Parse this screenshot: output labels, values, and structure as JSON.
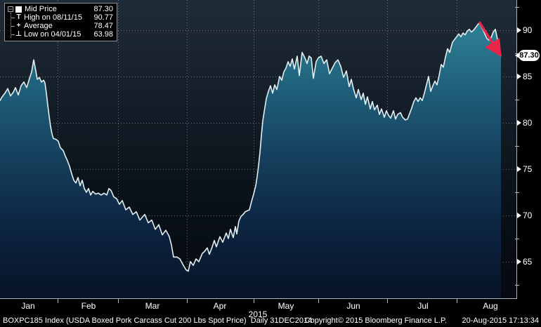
{
  "legend": {
    "collapse_glyph": "−",
    "items": [
      {
        "icon": "mid-price-swatch",
        "label": "Mid Price",
        "value": "87.30"
      },
      {
        "icon": "high-marker",
        "glyph": "T",
        "label": "High on 08/11/15",
        "value": "90.77"
      },
      {
        "icon": "average-marker",
        "glyph": "+",
        "label": "Average",
        "value": "78.47"
      },
      {
        "icon": "low-marker",
        "glyph": "⊥",
        "label": "Low on 04/01/15",
        "value": "63.98"
      }
    ]
  },
  "chart_data": {
    "type": "area",
    "title": "BOXPC185 Index (USDA Boxed Pork Carcass Cut 200 Lbs Spot Price)",
    "period": "Daily 31DEC2014",
    "last_price_label": "87.30",
    "high": {
      "date": "08/11/15",
      "value": 90.77
    },
    "average": 78.47,
    "low": {
      "date": "04/01/15",
      "value": 63.98
    },
    "x_axis": {
      "month_labels": [
        "Jan",
        "Feb",
        "Mar",
        "Apr",
        "May",
        "Jun",
        "Jul",
        "Aug"
      ],
      "month_label_x": [
        40,
        126,
        217,
        313,
        407,
        503,
        602,
        698
      ],
      "month_tick_x": [
        82,
        168,
        266,
        361,
        453,
        551,
        650
      ],
      "year": "2015"
    },
    "y_axis": {
      "ticks": [
        90,
        85,
        80,
        75,
        70,
        65
      ],
      "minor_ticks": [
        92.5,
        87.5,
        82.5,
        77.5,
        72.5,
        67.5,
        62.5
      ],
      "ylim": [
        60.98,
        93.26
      ]
    },
    "grid": true,
    "legend_position": "top-left",
    "series": [
      {
        "name": "Mid Price",
        "points": [
          [
            0,
            82.4
          ],
          [
            3,
            82.8
          ],
          [
            7,
            83.2
          ],
          [
            11,
            83.7
          ],
          [
            15,
            82.9
          ],
          [
            19,
            83.3
          ],
          [
            22,
            83.8
          ],
          [
            26,
            83.0
          ],
          [
            30,
            84.0
          ],
          [
            34,
            84.4
          ],
          [
            38,
            83.8
          ],
          [
            42,
            84.8
          ],
          [
            45,
            85.5
          ],
          [
            48,
            86.8
          ],
          [
            51,
            85.6
          ],
          [
            53,
            84.7
          ],
          [
            56,
            84.9
          ],
          [
            59,
            84.4
          ],
          [
            62,
            84.6
          ],
          [
            64,
            84.3
          ],
          [
            66,
            83.2
          ],
          [
            68,
            81.9
          ],
          [
            70,
            80.7
          ],
          [
            72,
            79.6
          ],
          [
            74,
            78.8
          ],
          [
            76,
            78.3
          ],
          [
            80,
            78.2
          ],
          [
            83,
            78.0
          ],
          [
            86,
            77.3
          ],
          [
            90,
            77.0
          ],
          [
            93,
            76.4
          ],
          [
            96,
            75.9
          ],
          [
            99,
            75.3
          ],
          [
            102,
            74.5
          ],
          [
            105,
            73.8
          ],
          [
            108,
            73.5
          ],
          [
            111,
            74.1
          ],
          [
            114,
            73.2
          ],
          [
            117,
            73.8
          ],
          [
            120,
            72.9
          ],
          [
            123,
            72.5
          ],
          [
            126,
            72.9
          ],
          [
            129,
            72.2
          ],
          [
            132,
            72.6
          ],
          [
            136,
            72.3
          ],
          [
            140,
            72.4
          ],
          [
            144,
            72.2
          ],
          [
            148,
            72.4
          ],
          [
            152,
            72.2
          ],
          [
            155,
            72.9
          ],
          [
            158,
            72.7
          ],
          [
            162,
            72.0
          ],
          [
            166,
            71.8
          ],
          [
            170,
            71.2
          ],
          [
            174,
            71.6
          ],
          [
            179,
            70.6
          ],
          [
            184,
            70.9
          ],
          [
            189,
            70.1
          ],
          [
            194,
            70.4
          ],
          [
            199,
            69.5
          ],
          [
            206,
            70.1
          ],
          [
            211,
            69.2
          ],
          [
            216,
            69.5
          ],
          [
            221,
            68.5
          ],
          [
            226,
            69.0
          ],
          [
            231,
            67.9
          ],
          [
            236,
            68.4
          ],
          [
            241,
            67.7
          ],
          [
            244,
            66.8
          ],
          [
            247,
            65.5
          ],
          [
            252,
            65.5
          ],
          [
            256,
            65.3
          ],
          [
            261,
            64.6
          ],
          [
            265,
            64.1
          ],
          [
            268,
            63.98
          ],
          [
            271,
            65.0
          ],
          [
            275,
            64.6
          ],
          [
            279,
            65.3
          ],
          [
            283,
            65.0
          ],
          [
            288,
            65.9
          ],
          [
            291,
            66.1
          ],
          [
            295,
            66.5
          ],
          [
            298,
            65.8
          ],
          [
            302,
            66.6
          ],
          [
            305,
            67.3
          ],
          [
            308,
            66.6
          ],
          [
            313,
            67.7
          ],
          [
            317,
            67.1
          ],
          [
            322,
            68.1
          ],
          [
            325,
            67.5
          ],
          [
            328,
            68.5
          ],
          [
            332,
            67.6
          ],
          [
            335,
            68.8
          ],
          [
            337,
            68.0
          ],
          [
            340,
            69.4
          ],
          [
            343,
            69.9
          ],
          [
            346,
            70.1
          ],
          [
            349,
            70.4
          ],
          [
            352,
            70.5
          ],
          [
            355,
            70.6
          ],
          [
            358,
            71.5
          ],
          [
            361,
            72.3
          ],
          [
            364,
            73.2
          ],
          [
            366,
            74.2
          ],
          [
            368,
            75.4
          ],
          [
            370,
            76.8
          ],
          [
            372,
            78.6
          ],
          [
            374,
            80.2
          ],
          [
            376,
            81.2
          ],
          [
            379,
            82.6
          ],
          [
            382,
            83.4
          ],
          [
            385,
            84.0
          ],
          [
            388,
            83.2
          ],
          [
            391,
            84.1
          ],
          [
            394,
            83.6
          ],
          [
            398,
            85.0
          ],
          [
            401,
            84.6
          ],
          [
            404,
            85.5
          ],
          [
            407,
            85.9
          ],
          [
            410,
            86.6
          ],
          [
            413,
            86.1
          ],
          [
            416,
            86.9
          ],
          [
            419,
            85.8
          ],
          [
            423,
            87.2
          ],
          [
            426,
            85.1
          ],
          [
            430,
            87.6
          ],
          [
            434,
            87.0
          ],
          [
            437,
            86.4
          ],
          [
            440,
            87.2
          ],
          [
            443,
            87.0
          ],
          [
            446,
            84.8
          ],
          [
            450,
            86.6
          ],
          [
            453,
            87.0
          ],
          [
            457,
            87.2
          ],
          [
            461,
            86.4
          ],
          [
            465,
            86.8
          ],
          [
            469,
            85.3
          ],
          [
            473,
            85.9
          ],
          [
            477,
            86.5
          ],
          [
            481,
            86.8
          ],
          [
            485,
            86.1
          ],
          [
            489,
            84.9
          ],
          [
            493,
            85.6
          ],
          [
            497,
            83.9
          ],
          [
            500,
            84.7
          ],
          [
            503,
            83.7
          ],
          [
            507,
            82.7
          ],
          [
            510,
            83.6
          ],
          [
            514,
            82.5
          ],
          [
            517,
            83.2
          ],
          [
            520,
            82.0
          ],
          [
            523,
            82.8
          ],
          [
            527,
            81.5
          ],
          [
            530,
            82.3
          ],
          [
            533,
            81.4
          ],
          [
            537,
            81.9
          ],
          [
            540,
            80.9
          ],
          [
            543,
            81.5
          ],
          [
            547,
            80.6
          ],
          [
            550,
            81.3
          ],
          [
            553,
            80.8
          ],
          [
            556,
            80.5
          ],
          [
            560,
            81.3
          ],
          [
            563,
            80.4
          ],
          [
            566,
            80.9
          ],
          [
            570,
            81.1
          ],
          [
            573,
            80.6
          ],
          [
            577,
            80.3
          ],
          [
            580,
            80.4
          ],
          [
            583,
            81.0
          ],
          [
            586,
            81.6
          ],
          [
            589,
            82.3
          ],
          [
            592,
            82.7
          ],
          [
            595,
            82.3
          ],
          [
            598,
            82.7
          ],
          [
            601,
            82.4
          ],
          [
            604,
            83.2
          ],
          [
            607,
            84.1
          ],
          [
            610,
            85.0
          ],
          [
            613,
            83.4
          ],
          [
            616,
            84.0
          ],
          [
            619,
            84.5
          ],
          [
            622,
            84.1
          ],
          [
            625,
            85.1
          ],
          [
            628,
            86.3
          ],
          [
            631,
            86.0
          ],
          [
            634,
            87.1
          ],
          [
            637,
            88.0
          ],
          [
            640,
            87.6
          ],
          [
            644,
            88.7
          ],
          [
            647,
            89.0
          ],
          [
            650,
            89.3
          ],
          [
            653,
            89.6
          ],
          [
            656,
            89.3
          ],
          [
            659,
            89.7
          ],
          [
            662,
            89.5
          ],
          [
            665,
            89.9
          ],
          [
            668,
            90.1
          ],
          [
            671,
            89.8
          ],
          [
            674,
            90.0
          ],
          [
            677,
            90.3
          ],
          [
            680,
            90.6
          ],
          [
            682,
            90.77
          ],
          [
            684,
            90.5
          ],
          [
            687,
            90.1
          ],
          [
            690,
            89.6
          ],
          [
            693,
            89.1
          ],
          [
            696,
            88.9
          ],
          [
            699,
            89.2
          ],
          [
            702,
            89.8
          ],
          [
            705,
            90.1
          ],
          [
            707,
            89.4
          ],
          [
            709,
            88.5
          ],
          [
            711,
            87.8
          ],
          [
            713,
            87.3
          ]
        ]
      }
    ],
    "annotation_arrow": {
      "from": [
        682,
        90.9
      ],
      "to": [
        710,
        87.55
      ]
    },
    "colors": {
      "line": "#e2f0f4",
      "fill_top": "#2f8398",
      "fill_bottom": "#071225",
      "arrow": "#e9254a",
      "grid": "rgba(215,228,234,0.42)",
      "axis": "#a9b2b8",
      "bg_top": "#1f2b37",
      "bg_bottom": "#050910"
    }
  },
  "footer": {
    "copyright": "Copyright© 2015 Bloomberg Finance L.P.",
    "timestamp": "20-Aug-2015 17:13:34"
  }
}
